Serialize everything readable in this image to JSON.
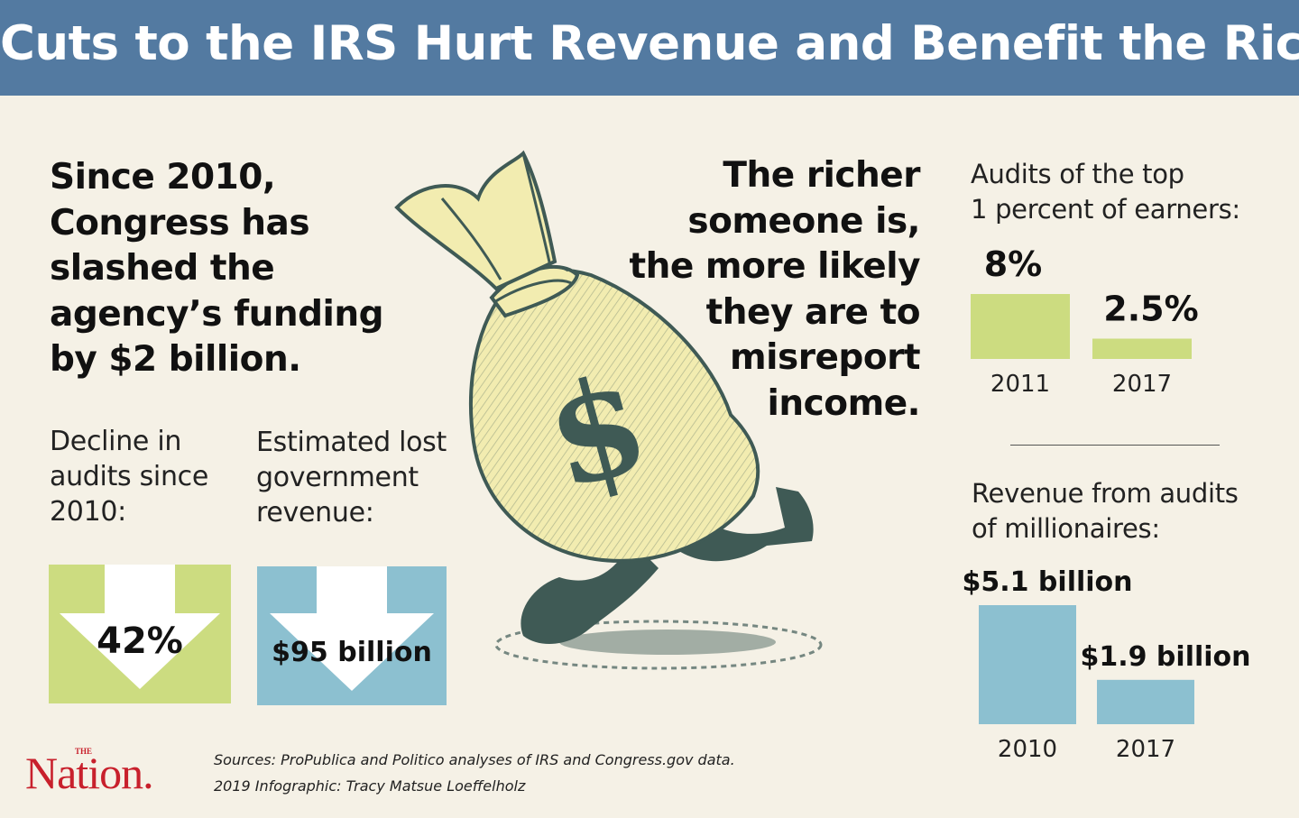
{
  "header": {
    "title": "Cuts to the IRS Hurt Revenue and Benefit the Rich"
  },
  "lead_text": "Since 2010,\nCongress has\nslashed the\nagency’s funding\nby $2 billion.",
  "richer_text": "The richer\nsomeone is,\nthe more likely\nthey are to\nmisreport\nincome.",
  "decline": {
    "label": "Decline in\naudits since\n2010:",
    "value": "42%"
  },
  "lost_revenue": {
    "label": "Estimated lost\ngovernment\nrevenue:",
    "value": "$95 billion"
  },
  "colors": {
    "header_bg": "#537aa1",
    "green": "#ccdc80",
    "blue": "#8cc0d0",
    "background": "#f5f1e6",
    "nation_red": "#c8202c",
    "bag_fill": "#f2ecb0",
    "bag_ink": "#3f5a55"
  },
  "icons": {
    "money_bag": "running-money-bag-icon",
    "down_arrow": "down-arrow-icon"
  },
  "chart_data": [
    {
      "type": "bar",
      "title": "Audits of the top\n1 percent of earners:",
      "categories": [
        "2011",
        "2017"
      ],
      "values": [
        8,
        2.5
      ],
      "value_labels": [
        "8%",
        "2.5%"
      ],
      "unit": "%",
      "color": "#ccdc80"
    },
    {
      "type": "bar",
      "title": "Revenue from audits\nof millionaires:",
      "categories": [
        "2010",
        "2017"
      ],
      "values": [
        5.1,
        1.9
      ],
      "value_labels": [
        "$5.1 billion",
        "$1.9 billion"
      ],
      "unit": "billion dollars",
      "color": "#8cc0d0"
    }
  ],
  "footer": {
    "logo_small": "THE",
    "logo": "Nation.",
    "sources": "Sources: ProPublica and Politico analyses of IRS and Congress.gov data.",
    "credit": "2019 Infographic: Tracy Matsue Loeffelholz"
  }
}
